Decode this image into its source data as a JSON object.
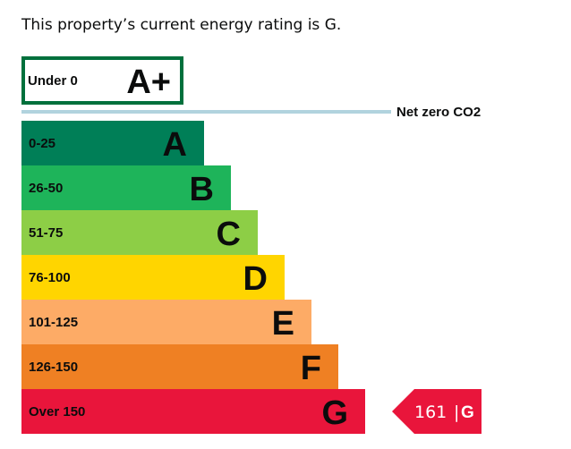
{
  "intro_text": "This property’s current energy rating is G.",
  "chart_data": {
    "type": "bar",
    "orientation": "horizontal",
    "top_band": {
      "range": "Under 0",
      "letter": "A+",
      "color": "#00703c",
      "style": "outlined"
    },
    "net_zero": {
      "label": "Net zero CO2",
      "color": "#b1d3de"
    },
    "bands": [
      {
        "range": "0-25",
        "letter": "A",
        "color": "#007f57"
      },
      {
        "range": "26-50",
        "letter": "B",
        "color": "#1eb45a"
      },
      {
        "range": "51-75",
        "letter": "C",
        "color": "#8dce46"
      },
      {
        "range": "76-100",
        "letter": "D",
        "color": "#ffd500"
      },
      {
        "range": "101-125",
        "letter": "E",
        "color": "#fdab66"
      },
      {
        "range": "126-150",
        "letter": "F",
        "color": "#ef8023"
      },
      {
        "range": "Over 150",
        "letter": "G",
        "color": "#e9153b"
      }
    ],
    "current": {
      "value": "161",
      "separator": "|",
      "letter": "G",
      "color": "#e9153b"
    }
  }
}
